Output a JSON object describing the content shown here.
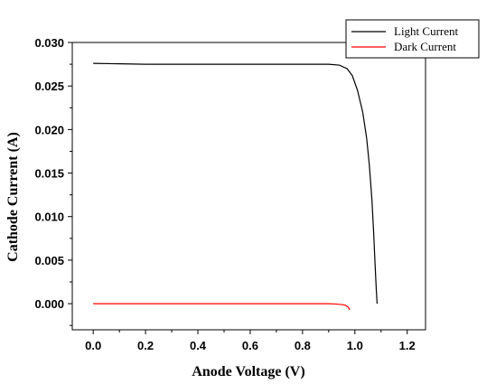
{
  "chart_data": {
    "type": "line",
    "title": "",
    "xlabel": "Anode Voltage (V)",
    "ylabel": "Cathode Current (A)",
    "xlim": [
      -0.08,
      1.27
    ],
    "ylim": [
      -0.003,
      0.03
    ],
    "x_ticks": [
      0.0,
      0.2,
      0.4,
      0.6,
      0.8,
      1.0,
      1.2
    ],
    "x_tick_labels": [
      "0.0",
      "0.2",
      "0.4",
      "0.6",
      "0.8",
      "1.0",
      "1.2"
    ],
    "y_ticks": [
      0.0,
      0.005,
      0.01,
      0.015,
      0.02,
      0.025,
      0.03
    ],
    "y_tick_labels": [
      "0.000",
      "0.005",
      "0.010",
      "0.015",
      "0.020",
      "0.025",
      "0.030"
    ],
    "grid": false,
    "legend_position": "top-right",
    "series": [
      {
        "name": "Light Current",
        "color": "#000000",
        "x": [
          0.0,
          0.2,
          0.4,
          0.6,
          0.8,
          0.9,
          0.94,
          0.97,
          0.99,
          1.01,
          1.03,
          1.045,
          1.055,
          1.065,
          1.072,
          1.078,
          1.082,
          1.085
        ],
        "y": [
          0.0276,
          0.0275,
          0.0275,
          0.0275,
          0.0275,
          0.0275,
          0.0274,
          0.027,
          0.0262,
          0.0245,
          0.022,
          0.019,
          0.016,
          0.012,
          0.008,
          0.004,
          0.0015,
          0.0
        ]
      },
      {
        "name": "Dark Current",
        "color": "#ff0000",
        "x": [
          0.0,
          0.2,
          0.4,
          0.6,
          0.8,
          0.9,
          0.93,
          0.95,
          0.965,
          0.975,
          0.98
        ],
        "y": [
          0.0,
          0.0,
          0.0,
          0.0,
          0.0,
          0.0,
          -5e-05,
          -0.0001,
          -0.0002,
          -0.0004,
          -0.0007
        ]
      }
    ]
  }
}
